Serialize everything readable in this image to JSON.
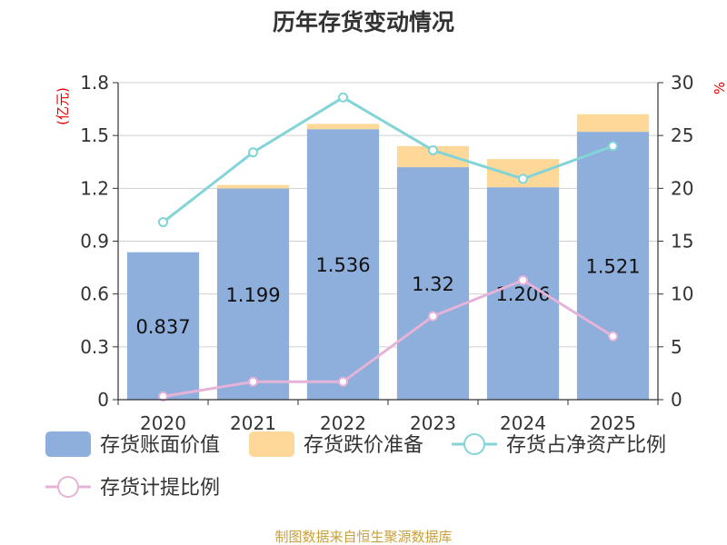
{
  "chart_data": {
    "type": "bar",
    "title": "历年存货变动情况",
    "categories": [
      "2020",
      "2021",
      "2022",
      "2023",
      "2024",
      "2025"
    ],
    "y_left": {
      "unit": "(亿元)",
      "ticks": [
        "0",
        "0.3",
        "0.6",
        "0.9",
        "1.2",
        "1.5",
        "1.8"
      ],
      "ylim": [
        0,
        1.8
      ]
    },
    "y_right": {
      "unit": "%",
      "ticks": [
        "0",
        "5",
        "10",
        "15",
        "20",
        "25",
        "30"
      ],
      "ylim": [
        0,
        30
      ]
    },
    "series": [
      {
        "name": "存货账面价值",
        "kind": "bar",
        "stack": "inventory",
        "color": "#8eaedb",
        "values": [
          0.837,
          1.199,
          1.536,
          1.32,
          1.206,
          1.521
        ],
        "labels": [
          "0.837",
          "1.199",
          "1.536",
          "1.32",
          "1.206",
          "1.521"
        ]
      },
      {
        "name": "存货跌价准备",
        "kind": "bar",
        "stack": "inventory",
        "color": "#fdd899",
        "values": [
          0.0,
          0.02,
          0.03,
          0.12,
          0.16,
          0.1
        ]
      },
      {
        "name": "存货占净资产比例",
        "kind": "line",
        "axis": "right",
        "color": "#83d4d7",
        "values": [
          16.8,
          23.4,
          28.6,
          23.6,
          20.9,
          24.0
        ]
      },
      {
        "name": "存货计提比例",
        "kind": "line",
        "axis": "right",
        "color": "#e6b3d8",
        "values": [
          0.3,
          1.7,
          1.7,
          7.9,
          11.3,
          6.0
        ]
      }
    ],
    "legend_position": "bottom",
    "grid": true
  },
  "source": "制图数据来自恒生聚源数据库"
}
